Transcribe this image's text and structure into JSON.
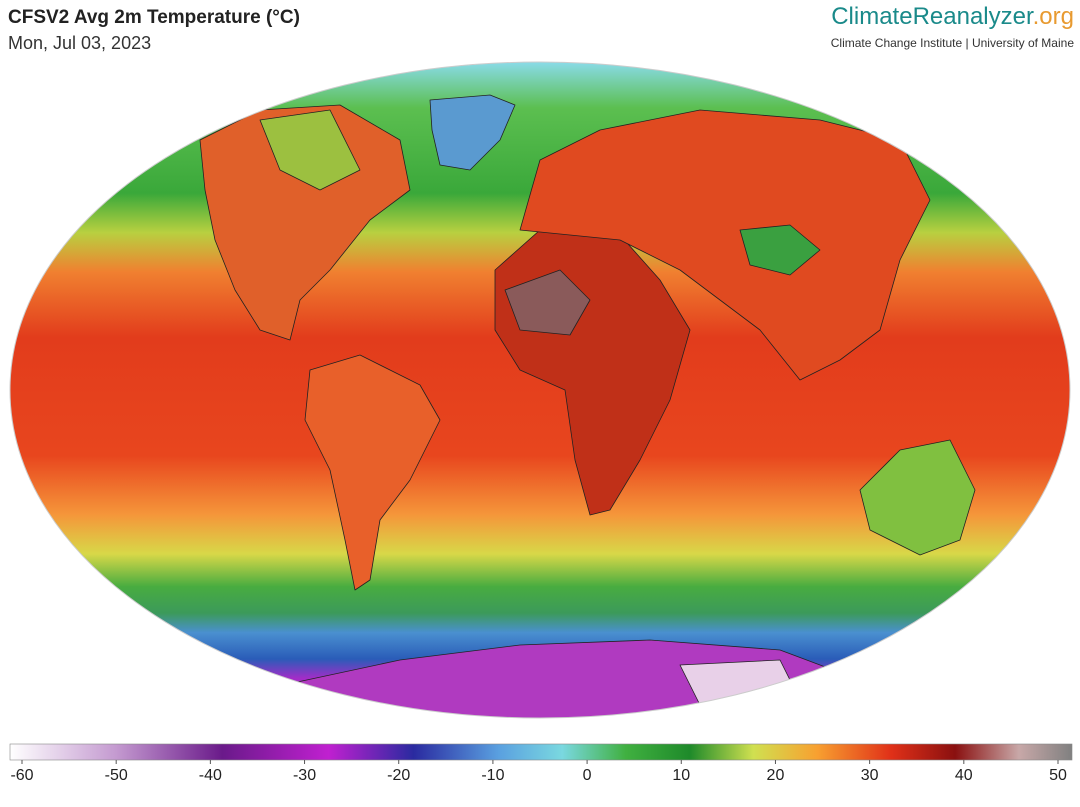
{
  "header": {
    "title": "CFSV2 Avg 2m Temperature (°C)",
    "date": "Mon, Jul 03, 2023"
  },
  "brand": {
    "name": "ClimateReanalyzer",
    "suffix": ".org",
    "affiliation": "Climate Change Institute | University of Maine"
  },
  "colorbar": {
    "lim": [
      -60,
      50
    ],
    "ticks": [
      -60,
      -50,
      -40,
      -30,
      -20,
      -10,
      0,
      10,
      20,
      30,
      40,
      50
    ]
  }
}
